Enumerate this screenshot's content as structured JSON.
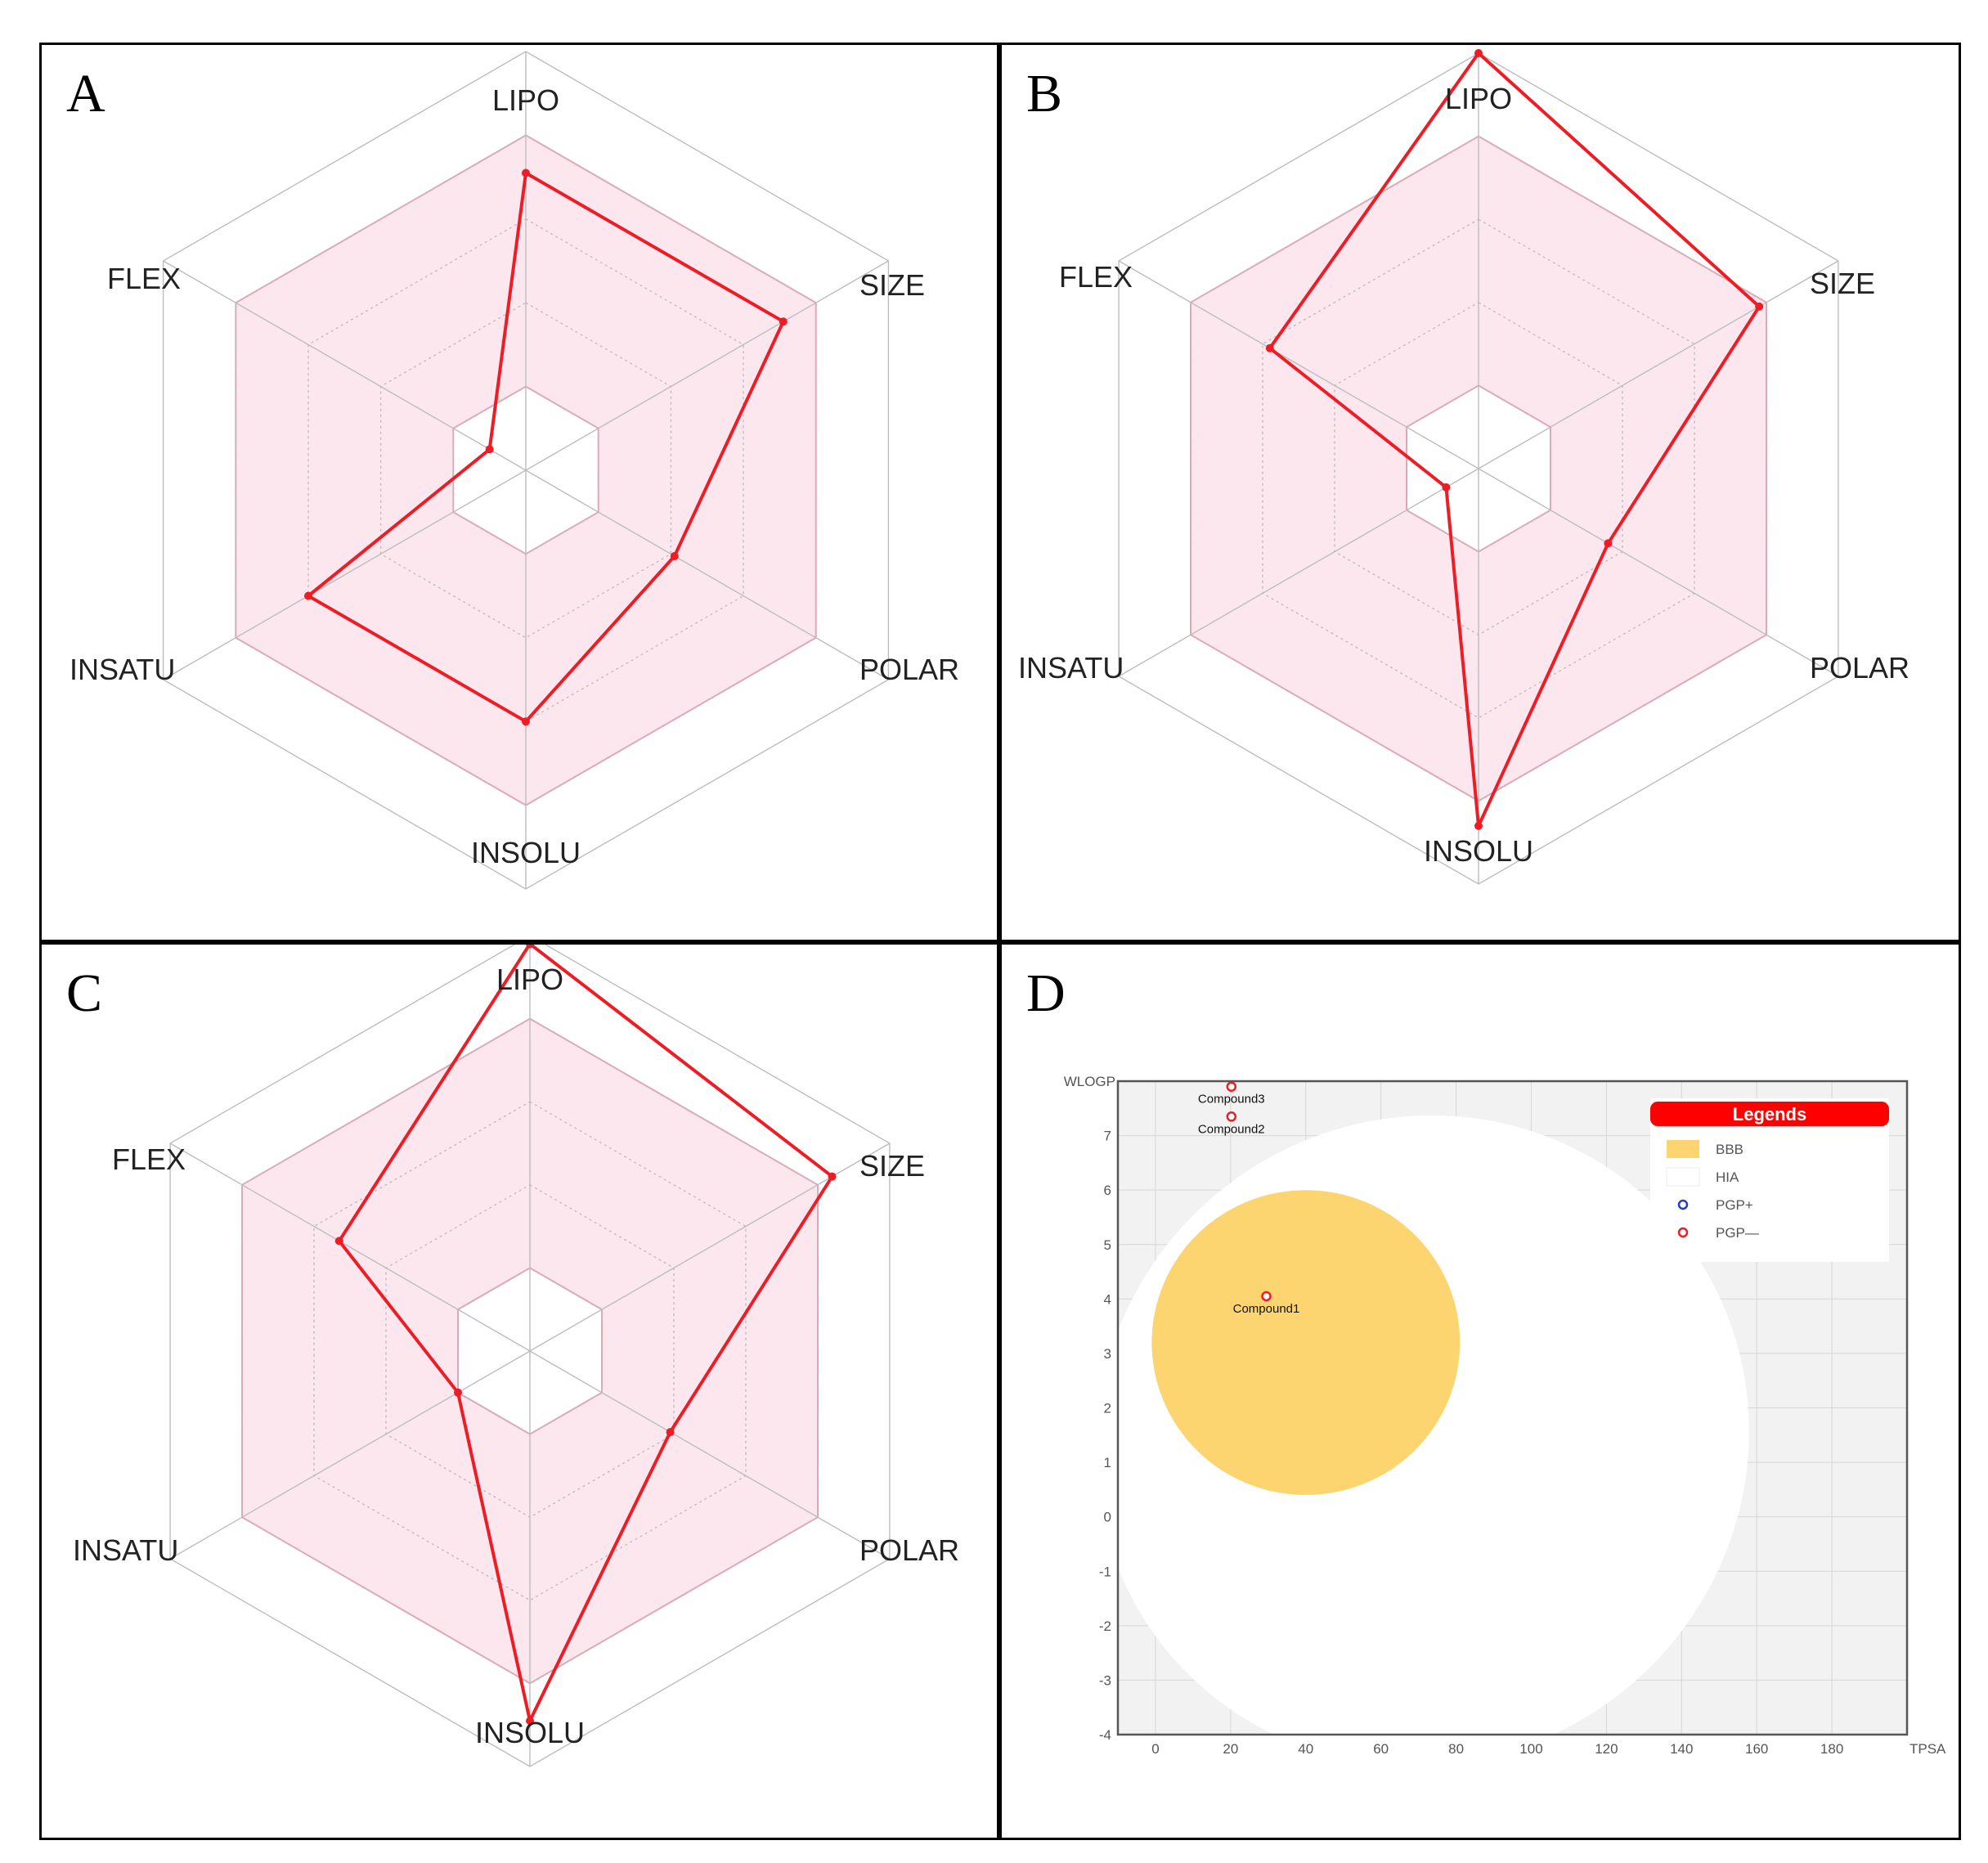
{
  "panels": [
    {
      "letter": "A",
      "axes": [
        "LIPO",
        "SIZE",
        "POLAR",
        "INSOLU",
        "INSATU",
        "FLEX"
      ]
    },
    {
      "letter": "B",
      "axes": [
        "LIPO",
        "SIZE",
        "POLAR",
        "INSOLU",
        "INSATU",
        "FLEX"
      ]
    },
    {
      "letter": "C",
      "axes": [
        "LIPO",
        "SIZE",
        "POLAR",
        "INSOLU",
        "INSATU",
        "FLEX"
      ]
    },
    {
      "letter": "D"
    }
  ],
  "colors": {
    "profile": "#ee1c25",
    "optimal_fill": "#fde7ee",
    "optimal_stroke": "#e6a4b4",
    "grid": "#bdbdbd",
    "bbb": "#fcd571",
    "plot_bg": "#f2f2f2",
    "legend_header": "#ff0000",
    "pgp_plus": "#1f3fbf"
  },
  "chart_data": [
    {
      "type": "radar",
      "panel": "A",
      "axes": [
        "LIPO",
        "SIZE",
        "POLAR",
        "INSOLU",
        "INSATU",
        "FLEX"
      ],
      "range": [
        0,
        1
      ],
      "grid_levels": 5,
      "optimal_range": [
        0.2,
        0.8
      ],
      "values": [
        0.71,
        0.71,
        0.41,
        0.6,
        0.6,
        0.1
      ]
    },
    {
      "type": "radar",
      "panel": "B",
      "axes": [
        "LIPO",
        "SIZE",
        "POLAR",
        "INSOLU",
        "INSATU",
        "FLEX"
      ],
      "range": [
        0,
        1
      ],
      "grid_levels": 5,
      "optimal_range": [
        0.2,
        0.8
      ],
      "values": [
        1.0,
        0.78,
        0.36,
        0.86,
        0.09,
        0.58
      ]
    },
    {
      "type": "radar",
      "panel": "C",
      "axes": [
        "LIPO",
        "SIZE",
        "POLAR",
        "INSOLU",
        "INSATU",
        "FLEX"
      ],
      "range": [
        0,
        1
      ],
      "grid_levels": 5,
      "optimal_range": [
        0.2,
        0.8
      ],
      "values": [
        0.98,
        0.84,
        0.39,
        0.89,
        0.2,
        0.53
      ]
    },
    {
      "type": "scatter",
      "panel": "D",
      "title": "",
      "xlabel": "TPSA",
      "ylabel": "WLOGP",
      "xlim": [
        -10,
        200
      ],
      "ylim": [
        -4,
        8
      ],
      "xticks": [
        0,
        20,
        40,
        60,
        80,
        100,
        120,
        140,
        160,
        180
      ],
      "yticks": [
        -4,
        -3,
        -2,
        -1,
        0,
        1,
        2,
        3,
        4,
        5,
        6,
        7
      ],
      "regions": [
        {
          "name": "HIA",
          "cx": 71,
          "cy": 1.4,
          "rx": 88,
          "ry": 5.9,
          "rotation_deg": -40
        },
        {
          "name": "BBB",
          "cx": 40,
          "cy": 3.2,
          "rx": 41,
          "ry": 2.8,
          "rotation_deg": 0
        }
      ],
      "points": [
        {
          "name": "Compound3",
          "x": 20.2,
          "y": 7.9,
          "class": "PGP-"
        },
        {
          "name": "Compound2",
          "x": 20.2,
          "y": 7.35,
          "class": "PGP-"
        },
        {
          "name": "Compound1",
          "x": 29.5,
          "y": 4.05,
          "class": "PGP-"
        }
      ],
      "legend": {
        "title": "Legends",
        "position": "top-right",
        "items": [
          "BBB",
          "HIA",
          "PGP+",
          "PGP—"
        ]
      }
    }
  ]
}
